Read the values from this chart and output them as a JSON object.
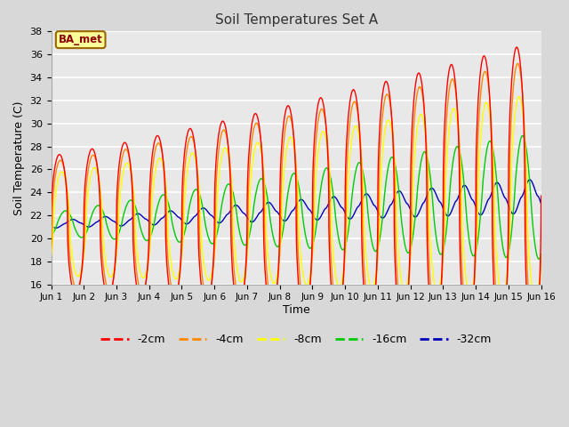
{
  "title": "Soil Temperatures Set A",
  "xlabel": "Time",
  "ylabel": "Soil Temperature (C)",
  "ylim": [
    16,
    38
  ],
  "xlim": [
    0,
    15
  ],
  "xtick_labels": [
    "Jun 1",
    "Jun 2",
    "Jun 3",
    "Jun 4",
    "Jun 5",
    "Jun 6",
    "Jun 7",
    "Jun 8",
    "Jun 9",
    "Jun 10",
    "Jun 11",
    "Jun 12",
    "Jun 13",
    "Jun 14",
    "Jun 15",
    "Jun 16"
  ],
  "ytick_values": [
    16,
    18,
    20,
    22,
    24,
    26,
    28,
    30,
    32,
    34,
    36,
    38
  ],
  "colors": {
    "-2cm": "#ff0000",
    "-4cm": "#ff8800",
    "-8cm": "#ffff00",
    "-16cm": "#00cc00",
    "-32cm": "#0000bb"
  },
  "legend_label": "BA_met",
  "fig_bg": "#d8d8d8",
  "plot_bg": "#e8e8e8"
}
